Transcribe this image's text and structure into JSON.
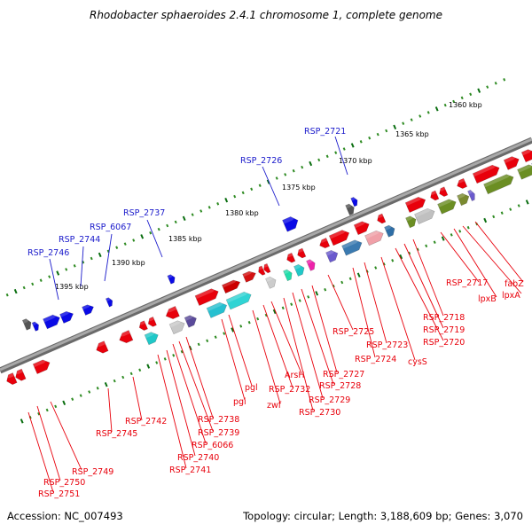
{
  "title": "Rhodobacter sphaeroides 2.4.1 chromosome 1, complete genome",
  "footer": {
    "accession": "Accession: NC_007493",
    "topology": "Topology: circular; Length: 3,188,609 bp; Genes: 3,070"
  },
  "kbp_markers": [
    "1360 kbp",
    "1365 kbp",
    "1370 kbp",
    "1375 kbp",
    "1380 kbp",
    "1385 kbp",
    "1390 kbp",
    "1395 kbp"
  ],
  "labels_above": [
    "RSP_2721",
    "RSP_2726",
    "RSP_2737",
    "RSP_6067",
    "RSP_2744",
    "RSP_2746"
  ],
  "labels_below": [
    "fabZ",
    "lpxA",
    "lpxB",
    "RSP_2717",
    "RSP_2718",
    "RSP_2719",
    "RSP_2720",
    "cysS",
    "RSP_2723",
    "RSP_2724",
    "RSP_2725",
    "RSP_2727",
    "RSP_2728",
    "RSP_2729",
    "RSP_2730",
    "ArsH",
    "RSP_2732",
    "zwf",
    "pgl",
    "pgi",
    "RSP_2738",
    "RSP_2739",
    "RSP_6066",
    "RSP_2740",
    "RSP_2741",
    "RSP_2742",
    "RSP_2745",
    "RSP_2749",
    "RSP_2750",
    "RSP_2751"
  ],
  "colors": {
    "backbone": "#8c8c8c",
    "gene_red": "#e8000b",
    "gene_blue": "#0a0ae6",
    "tick_green": "#2e8b22",
    "label_red": "#e8000b",
    "label_blue": "#1a1acb"
  }
}
